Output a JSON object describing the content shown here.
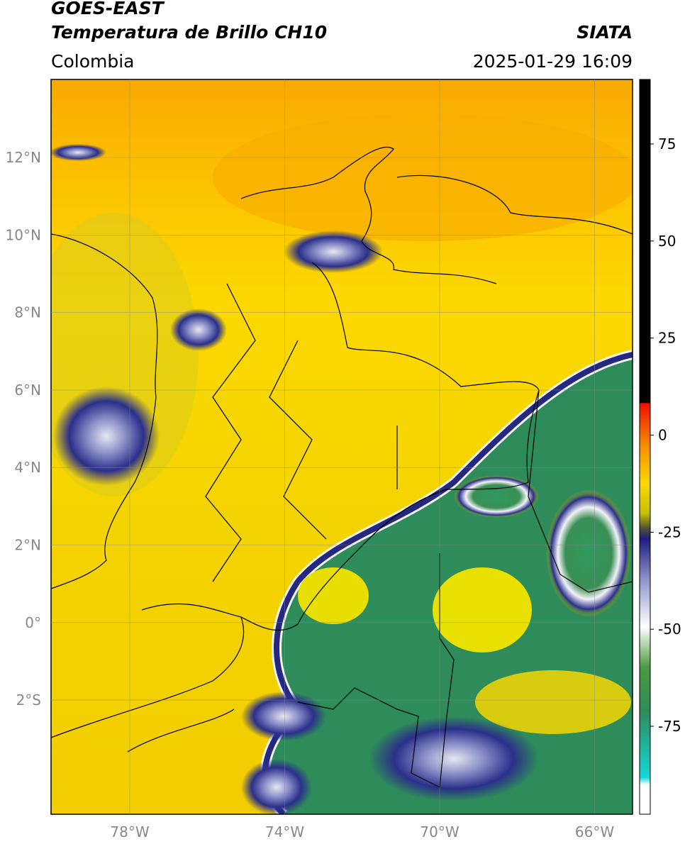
{
  "header": {
    "satellite": "GOES-EAST",
    "product": "Temperatura de Brillo CH10",
    "source": "SIATA",
    "region": "Colombia",
    "datetime": "2025-01-29 16:09"
  },
  "map": {
    "lat_ticks": [
      "12°N",
      "10°N",
      "8°N",
      "6°N",
      "4°N",
      "2°N",
      "0°",
      "2°S"
    ],
    "lon_ticks": [
      "78°W",
      "74°W",
      "70°W",
      "66°W"
    ]
  },
  "colorbar": {
    "ticks": [
      75,
      50,
      25,
      0,
      -25,
      -50,
      -75
    ]
  }
}
